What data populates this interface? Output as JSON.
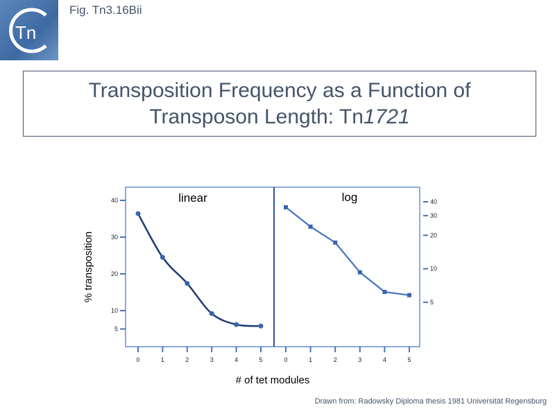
{
  "figure_label": "Fig. Tn3.16Bii",
  "logo_text": "Tn",
  "title": {
    "line1": "Transposition Frequency as a Function of",
    "line2_plain": "Transposon Length: Tn",
    "line2_italic": "1721"
  },
  "source": "Drawn from: Radowsky Diploma thesis 1981 Universität Regensburg",
  "colors": {
    "linear_line": "#1f3d73",
    "log_line": "#4472c4",
    "axis": "#4472c4",
    "text": "#44546a"
  },
  "chart_data": [
    {
      "type": "line",
      "panel_label": "linear",
      "xlabel": "# of tet modules",
      "ylabel": "% transposition",
      "x": [
        0,
        1,
        2,
        3,
        4,
        5
      ],
      "y": [
        36.4,
        24.5,
        17.4,
        9.2,
        6.2,
        5.8
      ],
      "marker": "circle",
      "smooth": true,
      "x_ticks": [
        "0",
        "1",
        "2",
        "3",
        "4",
        "5"
      ],
      "y_ticks": [
        5,
        10,
        20,
        30,
        40
      ],
      "ylim": [
        0,
        40
      ],
      "yscale": "linear",
      "y_axis_side": "left"
    },
    {
      "type": "line",
      "panel_label": "log",
      "xlabel": "# of tet modules",
      "x": [
        0,
        1,
        2,
        3,
        4,
        5
      ],
      "y": [
        35.7,
        23.9,
        17.2,
        9.3,
        6.2,
        5.8
      ],
      "marker": "square",
      "smooth": false,
      "x_ticks": [
        "0",
        "1",
        "2",
        "3",
        "4",
        "5"
      ],
      "y_ticks": [
        5,
        10,
        20,
        30,
        40
      ],
      "yscale": "log",
      "y_axis_side": "right"
    }
  ]
}
